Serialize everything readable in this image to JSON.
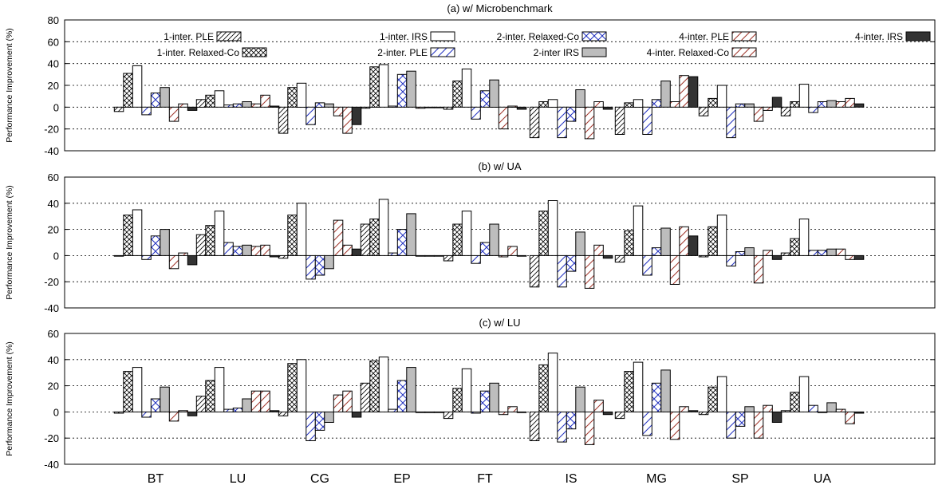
{
  "chart_data": [
    {
      "type": "bar",
      "title": "(a) w/ Microbenchmark",
      "ylabel": "Performance Improvement (%)",
      "ylim": [
        -40,
        80
      ],
      "yticks": [
        -40,
        -20,
        0,
        20,
        40,
        60,
        80
      ],
      "grid": "dotted horizontal",
      "legend": "top, 2 rows x 5 columns",
      "categories": [
        "BT",
        "LU",
        "CG",
        "EP",
        "FT",
        "IS",
        "MG",
        "SP",
        "UA"
      ],
      "series": [
        {
          "name": "1-inter. PLE",
          "values": [
            -4,
            7,
            -24,
            -1,
            -2,
            -28,
            -25,
            -8,
            -8
          ]
        },
        {
          "name": "1-inter. Relaxed-Co",
          "values": [
            31,
            11,
            18,
            37,
            24,
            5,
            4,
            8,
            5
          ]
        },
        {
          "name": "1-inter. IRS",
          "values": [
            38,
            15,
            22,
            39,
            35,
            7,
            7,
            20,
            21
          ]
        },
        {
          "name": "2-inter. PLE",
          "values": [
            -7,
            2,
            -16,
            1,
            -11,
            -28,
            -25,
            -28,
            -5
          ]
        },
        {
          "name": "2-inter. Relaxed-Co",
          "values": [
            13,
            3,
            4,
            30,
            15,
            -13,
            7,
            3,
            5
          ]
        },
        {
          "name": "2-inter IRS",
          "values": [
            18,
            5,
            3,
            33,
            25,
            16,
            24,
            3,
            6
          ]
        },
        {
          "name": "4-inter. PLE",
          "values": [
            -13,
            3,
            -8,
            -1,
            -20,
            -29,
            5,
            -13,
            5
          ]
        },
        {
          "name": "4-inter. Relaxed-Co",
          "values": [
            3,
            11,
            -24,
            0,
            1,
            5,
            29,
            -3,
            8
          ]
        },
        {
          "name": "4-inter. IRS",
          "values": [
            -3,
            1,
            -16,
            0,
            -2,
            -2,
            28,
            9,
            3
          ]
        }
      ]
    },
    {
      "type": "bar",
      "title": "(b) w/ UA",
      "ylabel": "Performance Improvement (%)",
      "ylim": [
        -40,
        60
      ],
      "yticks": [
        -40,
        -20,
        0,
        20,
        40,
        60
      ],
      "grid": "dotted horizontal",
      "categories": [
        "BT",
        "LU",
        "CG",
        "EP",
        "FT",
        "IS",
        "MG",
        "SP",
        "UA"
      ],
      "series": [
        {
          "name": "1-inter. PLE",
          "values": [
            0,
            16,
            -2,
            24,
            -4,
            -24,
            -5,
            -1,
            2
          ]
        },
        {
          "name": "1-inter. Relaxed-Co",
          "values": [
            31,
            23,
            31,
            28,
            24,
            34,
            19,
            22,
            13
          ]
        },
        {
          "name": "1-inter. IRS",
          "values": [
            35,
            34,
            40,
            43,
            34,
            42,
            38,
            31,
            28
          ]
        },
        {
          "name": "2-inter. PLE",
          "values": [
            -3,
            10,
            -18,
            2,
            -6,
            -24,
            -15,
            -8,
            4
          ]
        },
        {
          "name": "2-inter. Relaxed-Co",
          "values": [
            15,
            7,
            -15,
            20,
            10,
            -12,
            6,
            3,
            4
          ]
        },
        {
          "name": "2-inter IRS",
          "values": [
            20,
            8,
            -10,
            32,
            24,
            18,
            21,
            6,
            5
          ]
        },
        {
          "name": "4-inter. PLE",
          "values": [
            -10,
            7,
            27,
            0,
            -1,
            -25,
            -22,
            -21,
            5
          ]
        },
        {
          "name": "4-inter. Relaxed-Co",
          "values": [
            2,
            8,
            8,
            0,
            7,
            8,
            22,
            4,
            -3
          ]
        },
        {
          "name": "4-inter. IRS",
          "values": [
            -7,
            -1,
            5,
            0,
            0,
            -2,
            15,
            -3,
            -3
          ]
        }
      ]
    },
    {
      "type": "bar",
      "title": "(c) w/ LU",
      "ylabel": "Performance Improvement (%)",
      "ylim": [
        -40,
        60
      ],
      "yticks": [
        -40,
        -20,
        0,
        20,
        40,
        60
      ],
      "grid": "dotted horizontal",
      "categories": [
        "BT",
        "LU",
        "CG",
        "EP",
        "FT",
        "IS",
        "MG",
        "SP",
        "UA"
      ],
      "series": [
        {
          "name": "1-inter. PLE",
          "values": [
            -1,
            12,
            -3,
            22,
            -5,
            -22,
            -5,
            -2,
            1
          ]
        },
        {
          "name": "1-inter. Relaxed-Co",
          "values": [
            31,
            24,
            37,
            39,
            18,
            36,
            31,
            19,
            15
          ]
        },
        {
          "name": "1-inter. IRS",
          "values": [
            34,
            34,
            40,
            42,
            33,
            45,
            38,
            27,
            27
          ]
        },
        {
          "name": "2-inter. PLE",
          "values": [
            -4,
            2,
            -22,
            2,
            -1,
            -23,
            -18,
            -20,
            5
          ]
        },
        {
          "name": "2-inter. Relaxed-Co",
          "values": [
            10,
            3,
            -14,
            24,
            16,
            -13,
            22,
            -11,
            0
          ]
        },
        {
          "name": "2-inter IRS",
          "values": [
            19,
            10,
            -8,
            34,
            22,
            19,
            32,
            4,
            7
          ]
        },
        {
          "name": "4-inter. PLE",
          "values": [
            -7,
            16,
            13,
            0,
            -2,
            -25,
            -21,
            -20,
            2
          ]
        },
        {
          "name": "4-inter. Relaxed-Co",
          "values": [
            1,
            16,
            16,
            0,
            4,
            9,
            4,
            5,
            -9
          ]
        },
        {
          "name": "4-inter. IRS",
          "values": [
            -3,
            1,
            -4,
            0,
            0,
            -2,
            1,
            -8,
            -1
          ]
        }
      ]
    }
  ],
  "legend": [
    {
      "label": "1-inter. PLE",
      "pattern": "fwdiag"
    },
    {
      "label": "1-inter. IRS",
      "pattern": "white"
    },
    {
      "label": "2-inter. Relaxed-Co",
      "pattern": "bluecross"
    },
    {
      "label": "4-inter. PLE",
      "pattern": "reddiag"
    },
    {
      "label": "4-inter. IRS",
      "pattern": "black"
    },
    {
      "label": "1-inter. Relaxed-Co",
      "pattern": "crosshatch"
    },
    {
      "label": "2-inter. PLE",
      "pattern": "bluediag"
    },
    {
      "label": "2-inter IRS",
      "pattern": "gray"
    },
    {
      "label": "4-inter. Relaxed-Co",
      "pattern": "reddiag2"
    }
  ],
  "colors": {
    "gray_fill": "#bdbdbd",
    "black_fill": "#333333",
    "blue_pattern": "#1f2fbf",
    "red_pattern": "#a0342a"
  }
}
